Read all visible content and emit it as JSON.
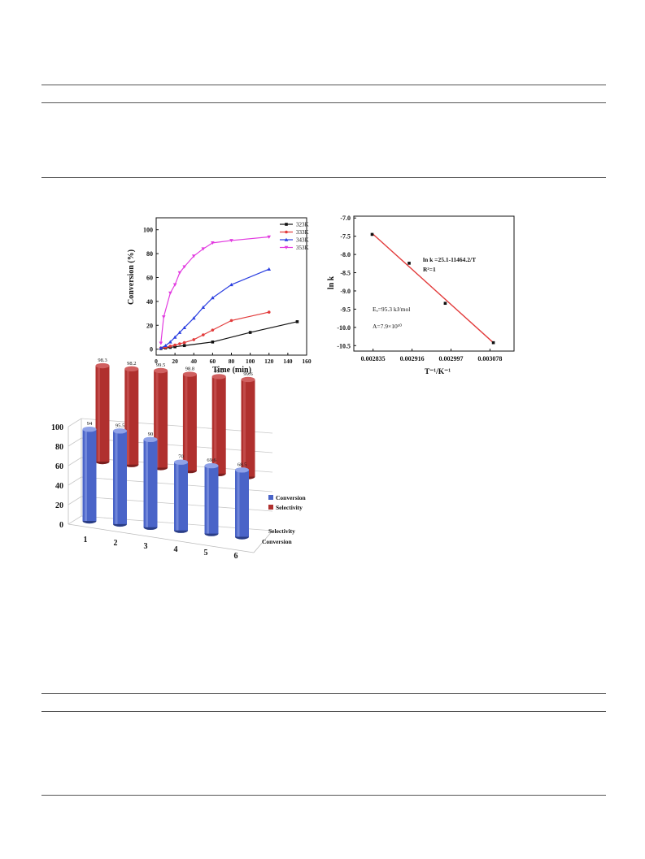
{
  "chart_data": [
    {
      "type": "line",
      "xlabel": "Time (min)",
      "ylabel": "Conversion (%)",
      "xlim": [
        0,
        160
      ],
      "ylim": [
        -5,
        110
      ],
      "x_ticks": [
        "0",
        "20",
        "40",
        "60",
        "80",
        "100",
        "120",
        "140",
        "160"
      ],
      "y_ticks": [
        "0",
        "20",
        "40",
        "60",
        "80",
        "100"
      ],
      "legend_position": "top-right",
      "series": [
        {
          "name": "323K",
          "color": "#111111",
          "marker": "square",
          "x": [
            5,
            10,
            15,
            20,
            30,
            60,
            100,
            150
          ],
          "y": [
            0.5,
            1,
            1.5,
            2,
            3,
            6,
            14,
            23
          ]
        },
        {
          "name": "333K",
          "color": "#e23b3b",
          "marker": "circle",
          "x": [
            5,
            10,
            15,
            20,
            25,
            30,
            40,
            50,
            60,
            80,
            120
          ],
          "y": [
            1,
            1.5,
            2.5,
            3.5,
            4.5,
            5.5,
            8,
            12,
            16,
            24,
            31
          ]
        },
        {
          "name": "343K",
          "color": "#2b3fe0",
          "marker": "triangle-up",
          "x": [
            5,
            10,
            15,
            20,
            25,
            30,
            40,
            50,
            60,
            80,
            120
          ],
          "y": [
            1,
            3,
            6,
            10,
            14,
            18,
            26,
            35,
            43,
            54,
            67
          ]
        },
        {
          "name": "353K",
          "color": "#e23be0",
          "marker": "triangle-down",
          "x": [
            5,
            8,
            15,
            20,
            25,
            30,
            40,
            50,
            60,
            80,
            120
          ],
          "y": [
            5,
            27,
            47,
            54,
            64,
            69,
            78,
            84,
            89,
            91,
            94
          ]
        }
      ]
    },
    {
      "type": "scatter",
      "xlabel": "T⁻¹/K⁻¹",
      "ylabel": "ln k",
      "xlim": [
        0.002795,
        0.003128
      ],
      "ylim": [
        -10.65,
        -6.95
      ],
      "x_ticks": [
        "0.002835",
        "0.002916",
        "0.002997",
        "0.003078"
      ],
      "y_ticks": [
        "-7.0",
        "-7.5",
        "-8.0",
        "-8.5",
        "-9.0",
        "-9.5",
        "-10.0",
        "-10.5"
      ],
      "points": {
        "x": [
          0.002833,
          0.00291,
          0.002985,
          0.003085
        ],
        "y": [
          -7.45,
          -8.24,
          -9.34,
          -10.42
        ]
      },
      "fit_line": {
        "x": [
          0.002833,
          0.003085
        ],
        "y": [
          -7.42,
          -10.42
        ],
        "color": "#e23b3b"
      },
      "annotations": [
        "ln k =25.1-11464.2/T",
        "R²=1",
        "Eₐ=95.3 kJ/mol",
        "A=7.9×10¹⁰"
      ]
    },
    {
      "type": "bar",
      "style": "3d-cylinder",
      "categories": [
        "1",
        "2",
        "3",
        "4",
        "5",
        "6"
      ],
      "ylim": [
        0,
        100
      ],
      "y_ticks": [
        "0",
        "20",
        "40",
        "60",
        "80",
        "100"
      ],
      "depth_labels": [
        "Selectivity",
        "Conversion"
      ],
      "legend_position": "right",
      "series": [
        {
          "name": "Conversion",
          "color": "#4a64c8",
          "values": [
            94,
            95.5,
            90,
            70,
            69.6,
            68.5
          ],
          "labels": [
            "94",
            "95.5",
            "90",
            "70",
            "69.6",
            "68.5"
          ]
        },
        {
          "name": "Selectivity",
          "color": "#b0302e",
          "values": [
            98.3,
            98.2,
            99.5,
            98.8,
            99.5,
            99.6
          ],
          "labels": [
            "98.3",
            "98.2",
            "99.5",
            "98.8",
            "99.5",
            "99.6"
          ]
        }
      ]
    }
  ]
}
